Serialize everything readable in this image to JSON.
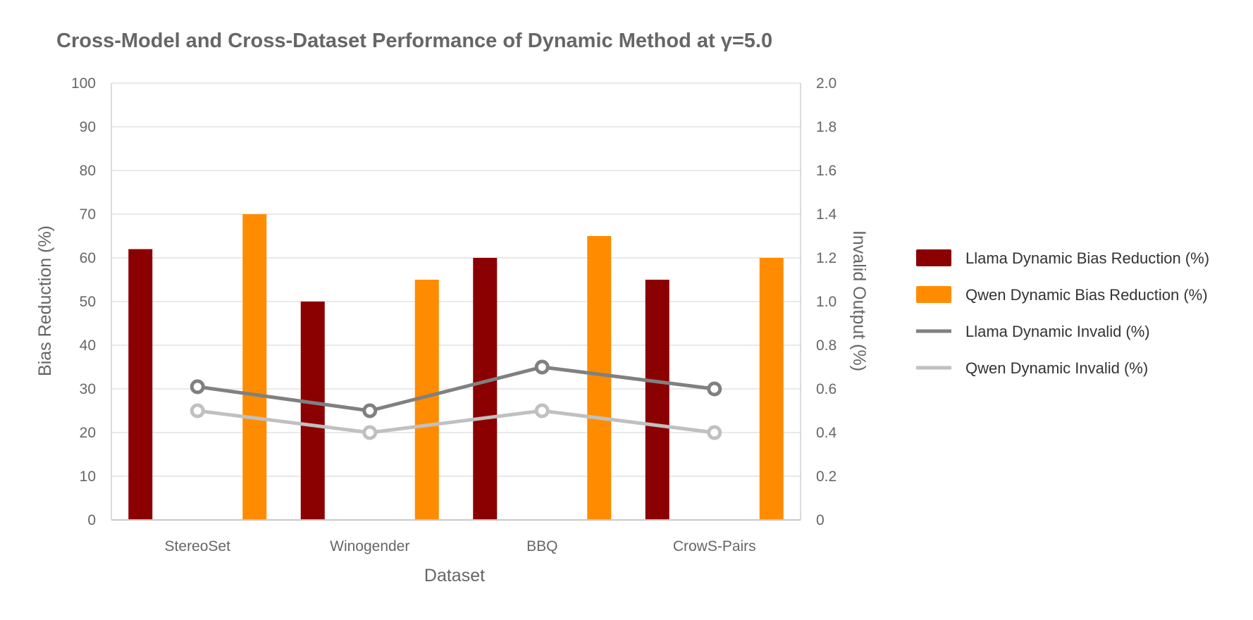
{
  "chart_data": {
    "type": "bar",
    "title": "Cross-Model and Cross-Dataset Performance of Dynamic Method at γ=5.0",
    "xlabel": "Dataset",
    "ylabel": "Bias Reduction (%)",
    "y2label": "Invalid Output (%)",
    "ylim": [
      0,
      100
    ],
    "y2lim": [
      0,
      2.0
    ],
    "yticks": [
      "0",
      "10",
      "20",
      "30",
      "40",
      "50",
      "60",
      "70",
      "80",
      "90",
      "100"
    ],
    "y2ticks": [
      "0",
      "0.2",
      "0.4",
      "0.6",
      "0.8",
      "1.0",
      "1.2",
      "1.4",
      "1.6",
      "1.8",
      "2.0"
    ],
    "grid": true,
    "legend_position": "right",
    "categories": [
      "StereoSet",
      "Winogender",
      "BBQ",
      "CrowS-Pairs"
    ],
    "series": [
      {
        "name": "Llama Dynamic Bias Reduction (%)",
        "type": "bar",
        "axis": "left",
        "color": "#8b0000",
        "values": [
          62,
          50,
          60,
          55
        ]
      },
      {
        "name": "Qwen Dynamic Bias Reduction (%)",
        "type": "bar",
        "axis": "left",
        "color": "#ff8c00",
        "values": [
          70,
          55,
          65,
          60
        ]
      },
      {
        "name": "Llama Dynamic Invalid (%)",
        "type": "line",
        "axis": "right",
        "color": "#808080",
        "values": [
          0.61,
          0.5,
          0.7,
          0.6
        ]
      },
      {
        "name": "Qwen Dynamic Invalid (%)",
        "type": "line",
        "axis": "right",
        "color": "#c0c0c0",
        "values": [
          0.5,
          0.4,
          0.5,
          0.4
        ]
      }
    ]
  }
}
